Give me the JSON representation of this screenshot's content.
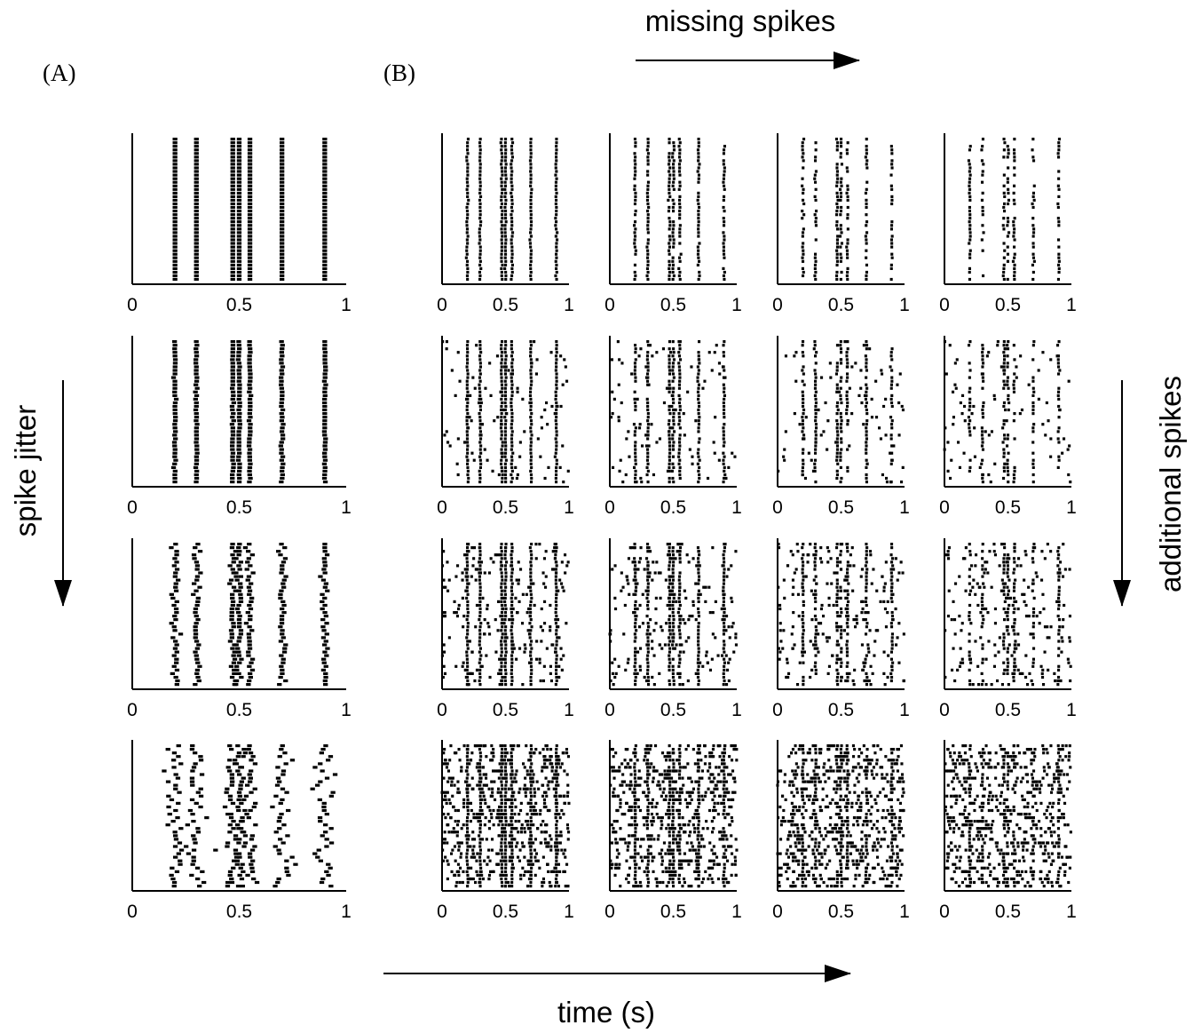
{
  "panel_labels": {
    "a": "(A)",
    "b": "(B)"
  },
  "annotations": {
    "top": "missing spikes",
    "left": "spike jitter",
    "right": "additional spikes",
    "bottom": "time (s)"
  },
  "chart_data": {
    "type": "raster",
    "xlim": [
      0,
      1
    ],
    "x_tick_labels": [
      "0",
      "0.5",
      "1"
    ],
    "trials": 40,
    "base_spike_times": [
      0.2,
      0.3,
      0.47,
      0.5,
      0.55,
      0.7,
      0.9
    ],
    "grid": false,
    "panel_A": {
      "description_rows": [
        "top",
        "second",
        "third",
        "bottom"
      ],
      "jitter_sd_s": [
        0.0,
        0.002,
        0.008,
        0.02
      ]
    },
    "panel_B": {
      "missing_spike_fraction_by_column": [
        0.0,
        0.15,
        0.3,
        0.45
      ],
      "additional_spikes_per_trial_by_row": [
        0,
        2,
        5,
        15
      ],
      "jitter_sd_s": 0.003
    }
  }
}
